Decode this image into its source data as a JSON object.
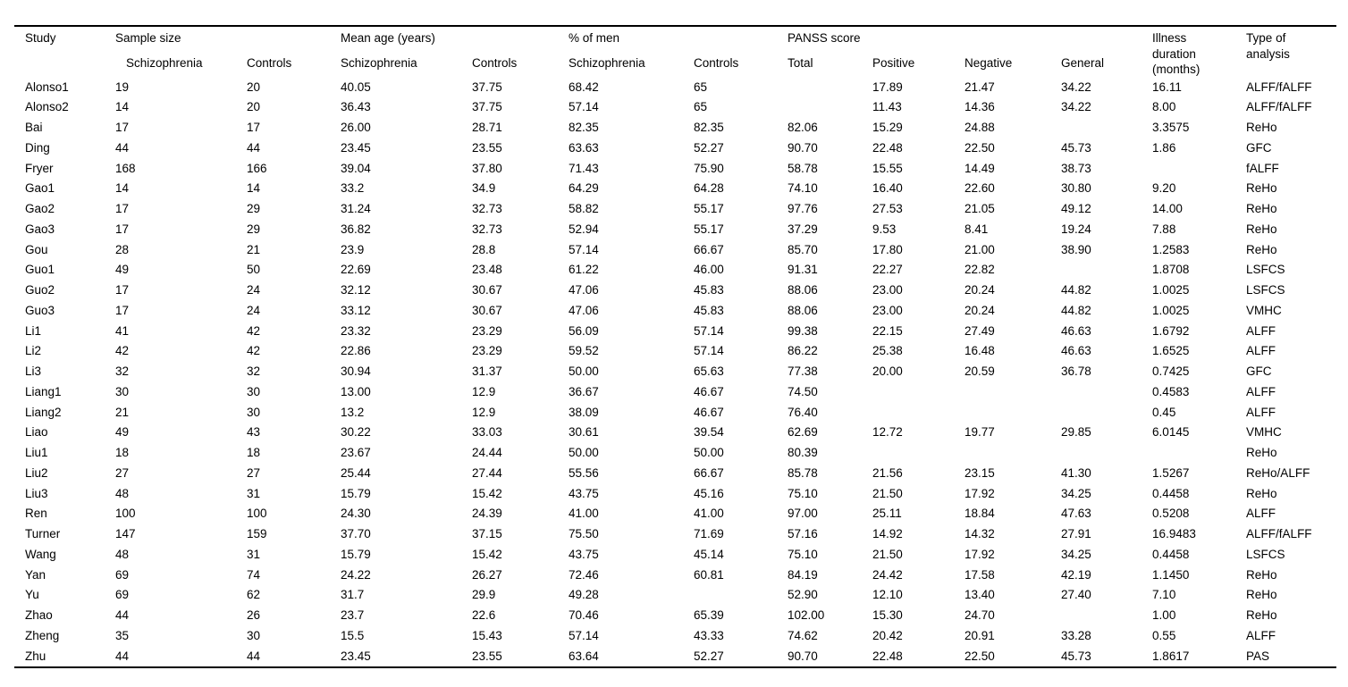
{
  "table": {
    "header": {
      "study": "Study",
      "groups": {
        "sample_size": "Sample size",
        "mean_age": "Mean age (years)",
        "pct_men": "% of men",
        "panss": "PANSS score"
      },
      "subheaders": {
        "schizophrenia": "Schizophrenia",
        "controls": "Controls",
        "total": "Total",
        "positive": "Positive",
        "negative": "Negative",
        "general": "General"
      },
      "illness_duration": "Illness duration (months)",
      "type_of_analysis": "Type of analysis"
    },
    "columns": [
      "Study",
      "Sample size Schizophrenia",
      "Sample size Controls",
      "Mean age Schizophrenia",
      "Mean age Controls",
      "% of men Schizophrenia",
      "% of men Controls",
      "PANSS Total",
      "PANSS Positive",
      "PANSS Negative",
      "PANSS General",
      "Illness duration (months)",
      "Type of analysis"
    ],
    "rows": [
      [
        "Alonso1",
        "19",
        "20",
        "40.05",
        "37.75",
        "68.42",
        "65",
        "",
        "17.89",
        "21.47",
        "34.22",
        "16.11",
        "ALFF/fALFF"
      ],
      [
        "Alonso2",
        "14",
        "20",
        "36.43",
        "37.75",
        "57.14",
        "65",
        "",
        "11.43",
        "14.36",
        "34.22",
        "8.00",
        "ALFF/fALFF"
      ],
      [
        "Bai",
        "17",
        "17",
        "26.00",
        "28.71",
        "82.35",
        "82.35",
        "82.06",
        "15.29",
        "24.88",
        "",
        "3.3575",
        "ReHo"
      ],
      [
        "Ding",
        "44",
        "44",
        "23.45",
        "23.55",
        "63.63",
        "52.27",
        "90.70",
        "22.48",
        "22.50",
        "45.73",
        "1.86",
        "GFC"
      ],
      [
        "Fryer",
        "168",
        "166",
        "39.04",
        "37.80",
        "71.43",
        "75.90",
        "58.78",
        "15.55",
        "14.49",
        "38.73",
        "",
        "fALFF"
      ],
      [
        "Gao1",
        "14",
        "14",
        "33.2",
        "34.9",
        "64.29",
        "64.28",
        "74.10",
        "16.40",
        "22.60",
        "30.80",
        "9.20",
        "ReHo"
      ],
      [
        "Gao2",
        "17",
        "29",
        "31.24",
        "32.73",
        "58.82",
        "55.17",
        "97.76",
        "27.53",
        "21.05",
        "49.12",
        "14.00",
        "ReHo"
      ],
      [
        "Gao3",
        "17",
        "29",
        "36.82",
        "32.73",
        "52.94",
        "55.17",
        "37.29",
        "9.53",
        "8.41",
        "19.24",
        "7.88",
        "ReHo"
      ],
      [
        "Gou",
        "28",
        "21",
        "23.9",
        "28.8",
        "57.14",
        "66.67",
        "85.70",
        "17.80",
        "21.00",
        "38.90",
        "1.2583",
        "ReHo"
      ],
      [
        "Guo1",
        "49",
        "50",
        "22.69",
        "23.48",
        "61.22",
        "46.00",
        "91.31",
        "22.27",
        "22.82",
        "",
        "1.8708",
        "LSFCS"
      ],
      [
        "Guo2",
        "17",
        "24",
        "32.12",
        "30.67",
        "47.06",
        "45.83",
        "88.06",
        "23.00",
        "20.24",
        "44.82",
        "1.0025",
        "LSFCS"
      ],
      [
        "Guo3",
        "17",
        "24",
        "33.12",
        "30.67",
        "47.06",
        "45.83",
        "88.06",
        "23.00",
        "20.24",
        "44.82",
        "1.0025",
        "VMHC"
      ],
      [
        "Li1",
        "41",
        "42",
        "23.32",
        "23.29",
        "56.09",
        "57.14",
        "99.38",
        "22.15",
        "27.49",
        "46.63",
        "1.6792",
        "ALFF"
      ],
      [
        "Li2",
        "42",
        "42",
        "22.86",
        "23.29",
        "59.52",
        "57.14",
        "86.22",
        "25.38",
        "16.48",
        "46.63",
        "1.6525",
        "ALFF"
      ],
      [
        "Li3",
        "32",
        "32",
        "30.94",
        "31.37",
        "50.00",
        "65.63",
        "77.38",
        "20.00",
        "20.59",
        "36.78",
        "0.7425",
        "GFC"
      ],
      [
        "Liang1",
        "30",
        "30",
        "13.00",
        "12.9",
        "36.67",
        "46.67",
        "74.50",
        "",
        "",
        "",
        "0.4583",
        "ALFF"
      ],
      [
        "Liang2",
        "21",
        "30",
        "13.2",
        "12.9",
        "38.09",
        "46.67",
        "76.40",
        "",
        "",
        "",
        "0.45",
        "ALFF"
      ],
      [
        "Liao",
        "49",
        "43",
        "30.22",
        "33.03",
        "30.61",
        "39.54",
        "62.69",
        "12.72",
        "19.77",
        "29.85",
        "6.0145",
        "VMHC"
      ],
      [
        "Liu1",
        "18",
        "18",
        "23.67",
        "24.44",
        "50.00",
        "50.00",
        "80.39",
        "",
        "",
        "",
        "",
        "ReHo"
      ],
      [
        "Liu2",
        "27",
        "27",
        "25.44",
        "27.44",
        "55.56",
        "66.67",
        "85.78",
        "21.56",
        "23.15",
        "41.30",
        "1.5267",
        "ReHo/ALFF"
      ],
      [
        "Liu3",
        "48",
        "31",
        "15.79",
        "15.42",
        "43.75",
        "45.16",
        "75.10",
        "21.50",
        "17.92",
        "34.25",
        "0.4458",
        "ReHo"
      ],
      [
        "Ren",
        "100",
        "100",
        "24.30",
        "24.39",
        "41.00",
        "41.00",
        "97.00",
        "25.11",
        "18.84",
        "47.63",
        "0.5208",
        "ALFF"
      ],
      [
        "Turner",
        "147",
        "159",
        "37.70",
        "37.15",
        "75.50",
        "71.69",
        "57.16",
        "14.92",
        "14.32",
        "27.91",
        "16.9483",
        "ALFF/fALFF"
      ],
      [
        "Wang",
        "48",
        "31",
        "15.79",
        "15.42",
        "43.75",
        "45.14",
        "75.10",
        "21.50",
        "17.92",
        "34.25",
        "0.4458",
        "LSFCS"
      ],
      [
        "Yan",
        "69",
        "74",
        "24.22",
        "26.27",
        "72.46",
        "60.81",
        "84.19",
        "24.42",
        "17.58",
        "42.19",
        "1.1450",
        "ReHo"
      ],
      [
        "Yu",
        "69",
        "62",
        "31.7",
        "29.9",
        "49.28",
        "",
        "52.90",
        "12.10",
        "13.40",
        "27.40",
        "7.10",
        "ReHo"
      ],
      [
        "Zhao",
        "44",
        "26",
        "23.7",
        "22.6",
        "70.46",
        "65.39",
        "102.00",
        "15.30",
        "24.70",
        "",
        "1.00",
        "ReHo"
      ],
      [
        "Zheng",
        "35",
        "30",
        "15.5",
        "15.43",
        "57.14",
        "43.33",
        "74.62",
        "20.42",
        "20.91",
        "33.28",
        "0.55",
        "ALFF"
      ],
      [
        "Zhu",
        "44",
        "44",
        "23.45",
        "23.55",
        "63.64",
        "52.27",
        "90.70",
        "22.48",
        "22.50",
        "45.73",
        "1.8617",
        "PAS"
      ]
    ]
  }
}
